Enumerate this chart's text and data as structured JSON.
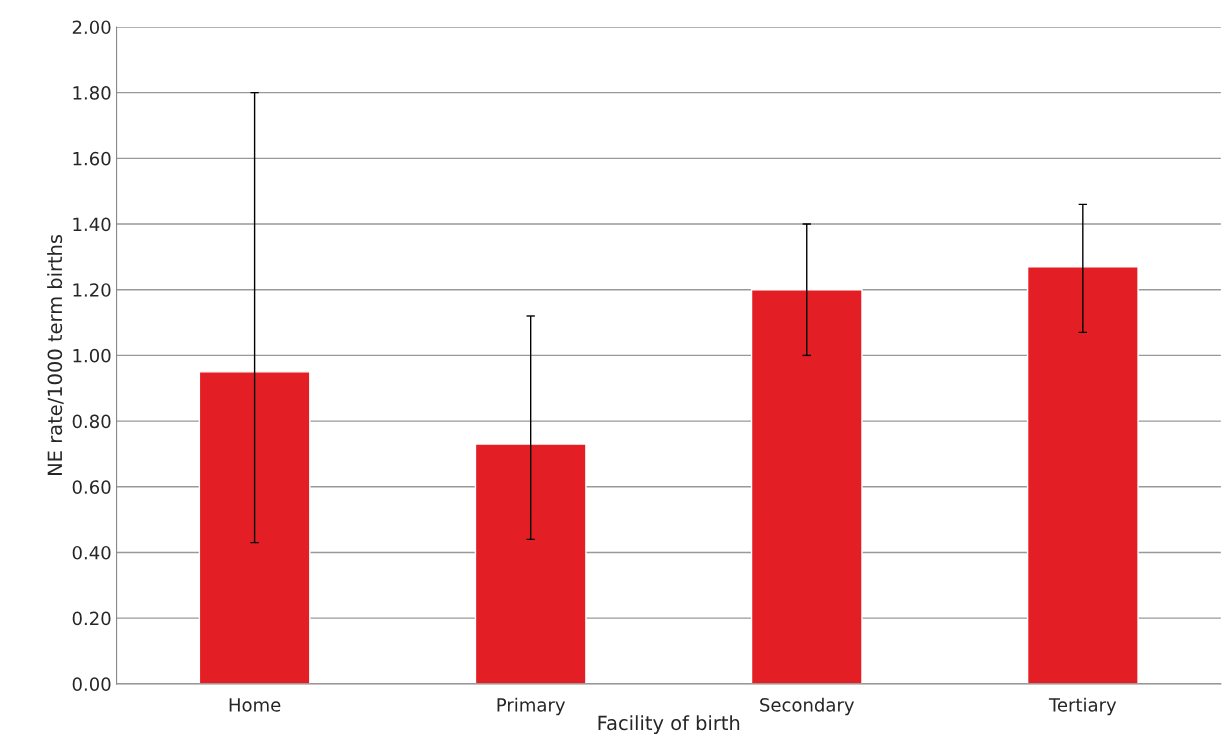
{
  "chart_data": {
    "type": "bar",
    "xlabel": "Facility of birth",
    "ylabel": "NE rate/1000 term births",
    "categories": [
      "Home",
      "Primary",
      "Secondary",
      "Tertiary"
    ],
    "series": [
      {
        "color": "#e31e24",
        "values": [
          0.95,
          0.73,
          1.2,
          1.27
        ],
        "errors": [
          [
            0.43,
            1.8
          ],
          [
            0.44,
            1.12
          ],
          [
            1.0,
            1.4
          ],
          [
            1.07,
            1.46
          ]
        ]
      }
    ],
    "ylim": [
      0,
      2
    ],
    "yticks": [
      {
        "value": 0,
        "label": "0.00"
      },
      {
        "value": 0.2,
        "label": "0.20"
      },
      {
        "value": 0.4,
        "label": "0.40"
      },
      {
        "value": 0.6,
        "label": "0.60"
      },
      {
        "value": 0.8,
        "label": "0.80"
      },
      {
        "value": 1.0,
        "label": "1.00"
      },
      {
        "value": 1.2,
        "label": "1.20"
      },
      {
        "value": 1.4,
        "label": "1.40"
      },
      {
        "value": 1.6,
        "label": "1.60"
      },
      {
        "value": 1.8,
        "label": "1.80"
      },
      {
        "value": 2.0,
        "label": "2.00"
      }
    ],
    "grid": "y",
    "legend": false
  }
}
